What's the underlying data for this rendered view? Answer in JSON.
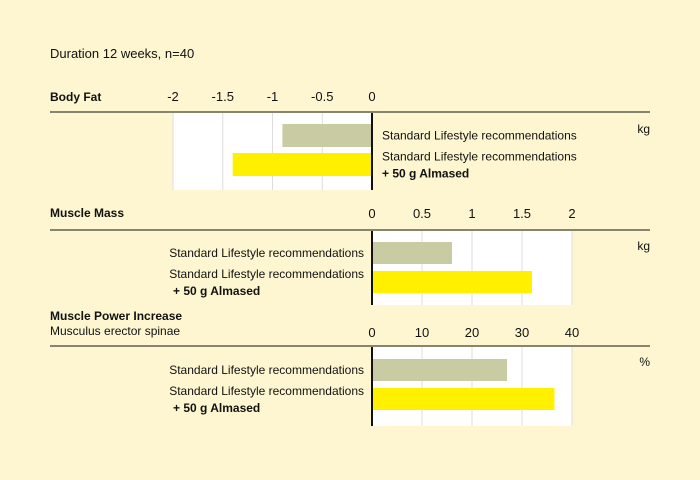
{
  "duration": "Duration 12 weeks, n=40",
  "colors": {
    "background": "#fdf6d0",
    "standard": "#c9cca2",
    "almased": "#fff000",
    "panel": "#ffffff",
    "grid": "#dddddd",
    "axis": "#111111"
  },
  "chart_data": [
    {
      "type": "bar",
      "orientation": "horizontal",
      "title": "Body Fat",
      "subtitle": "",
      "unit": "kg",
      "xlim": [
        -2,
        0
      ],
      "ticks": [
        -2,
        -1.5,
        -1,
        -0.5,
        0
      ],
      "tick_labels": [
        "-2",
        "-1.5",
        "-1",
        "-0.5",
        "0"
      ],
      "categories": [
        {
          "label": "Standard Lifestyle recommendations",
          "label2": ""
        },
        {
          "label": "Standard Lifestyle recommendations",
          "label2": "+ 50 g Almased"
        }
      ],
      "values": [
        -0.9,
        -1.4
      ],
      "label_side": "right",
      "grid": true
    },
    {
      "type": "bar",
      "orientation": "horizontal",
      "title": "Muscle Mass",
      "subtitle": "",
      "unit": "kg",
      "xlim": [
        0,
        2
      ],
      "ticks": [
        0,
        0.5,
        1,
        1.5,
        2
      ],
      "tick_labels": [
        "0",
        "0.5",
        "1",
        "1.5",
        "2"
      ],
      "categories": [
        {
          "label": "Standard Lifestyle recommendations",
          "label2": ""
        },
        {
          "label": "Standard Lifestyle recommendations",
          "label2": "+ 50 g Almased"
        }
      ],
      "values": [
        0.8,
        1.6
      ],
      "label_side": "left",
      "grid": true
    },
    {
      "type": "bar",
      "orientation": "horizontal",
      "title": "Muscle Power Increase",
      "subtitle": "Musculus erector spinae",
      "unit": "%",
      "xlim": [
        0,
        40
      ],
      "ticks": [
        0,
        10,
        20,
        30,
        40
      ],
      "tick_labels": [
        "0",
        "10",
        "20",
        "30",
        "40"
      ],
      "categories": [
        {
          "label": "Standard Lifestyle recommendations",
          "label2": ""
        },
        {
          "label": "Standard Lifestyle recommendations",
          "label2": "+ 50 g Almased"
        }
      ],
      "values": [
        27,
        36.5
      ],
      "label_side": "left",
      "grid": true
    }
  ]
}
